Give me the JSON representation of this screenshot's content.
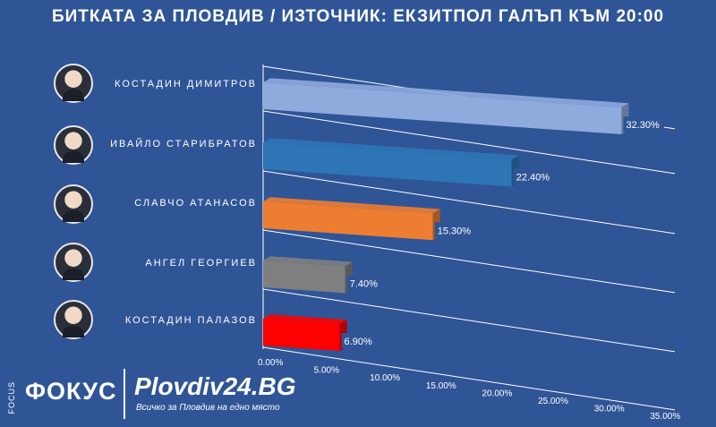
{
  "chart_data": {
    "type": "bar",
    "title": "БИТКАТА ЗА ПЛОВДИВ / ИЗТОЧНИК: ЕКЗИТПОЛ ГАЛЪП КЪМ 20:00",
    "categories": [
      "КОСТАДИН ДИМИТРОВ",
      "ИВАЙЛО СТАРИБРАТОВ",
      "СЛАВЧО АТАНАСОВ",
      "АНГЕЛ ГЕОРГИЕВ",
      "КОСТАДИН ПАЛАЗОВ"
    ],
    "values": [
      32.3,
      22.4,
      15.3,
      7.4,
      6.9
    ],
    "value_labels": [
      "32.30%",
      "22.40%",
      "15.30%",
      "7.40%",
      "6.90%"
    ],
    "colors": [
      "#8faadc",
      "#2e75b6",
      "#ed7d31",
      "#7f7f7f",
      "#ff0000"
    ],
    "xlim": [
      0,
      35
    ],
    "x_ticks": [
      "0.00%",
      "5.00%",
      "10.00%",
      "15.00%",
      "20.00%",
      "25.00%",
      "30.00%",
      "35.00%"
    ],
    "grid": true,
    "orientation": "horizontal-3d"
  },
  "footer": {
    "focus_small": "FOCUS",
    "focus_logo": "ФОКУС",
    "plovdiv_logo": "Plovdiv24.BG",
    "plovdiv_tagline": "Всичко за Пловдив на едно място"
  }
}
